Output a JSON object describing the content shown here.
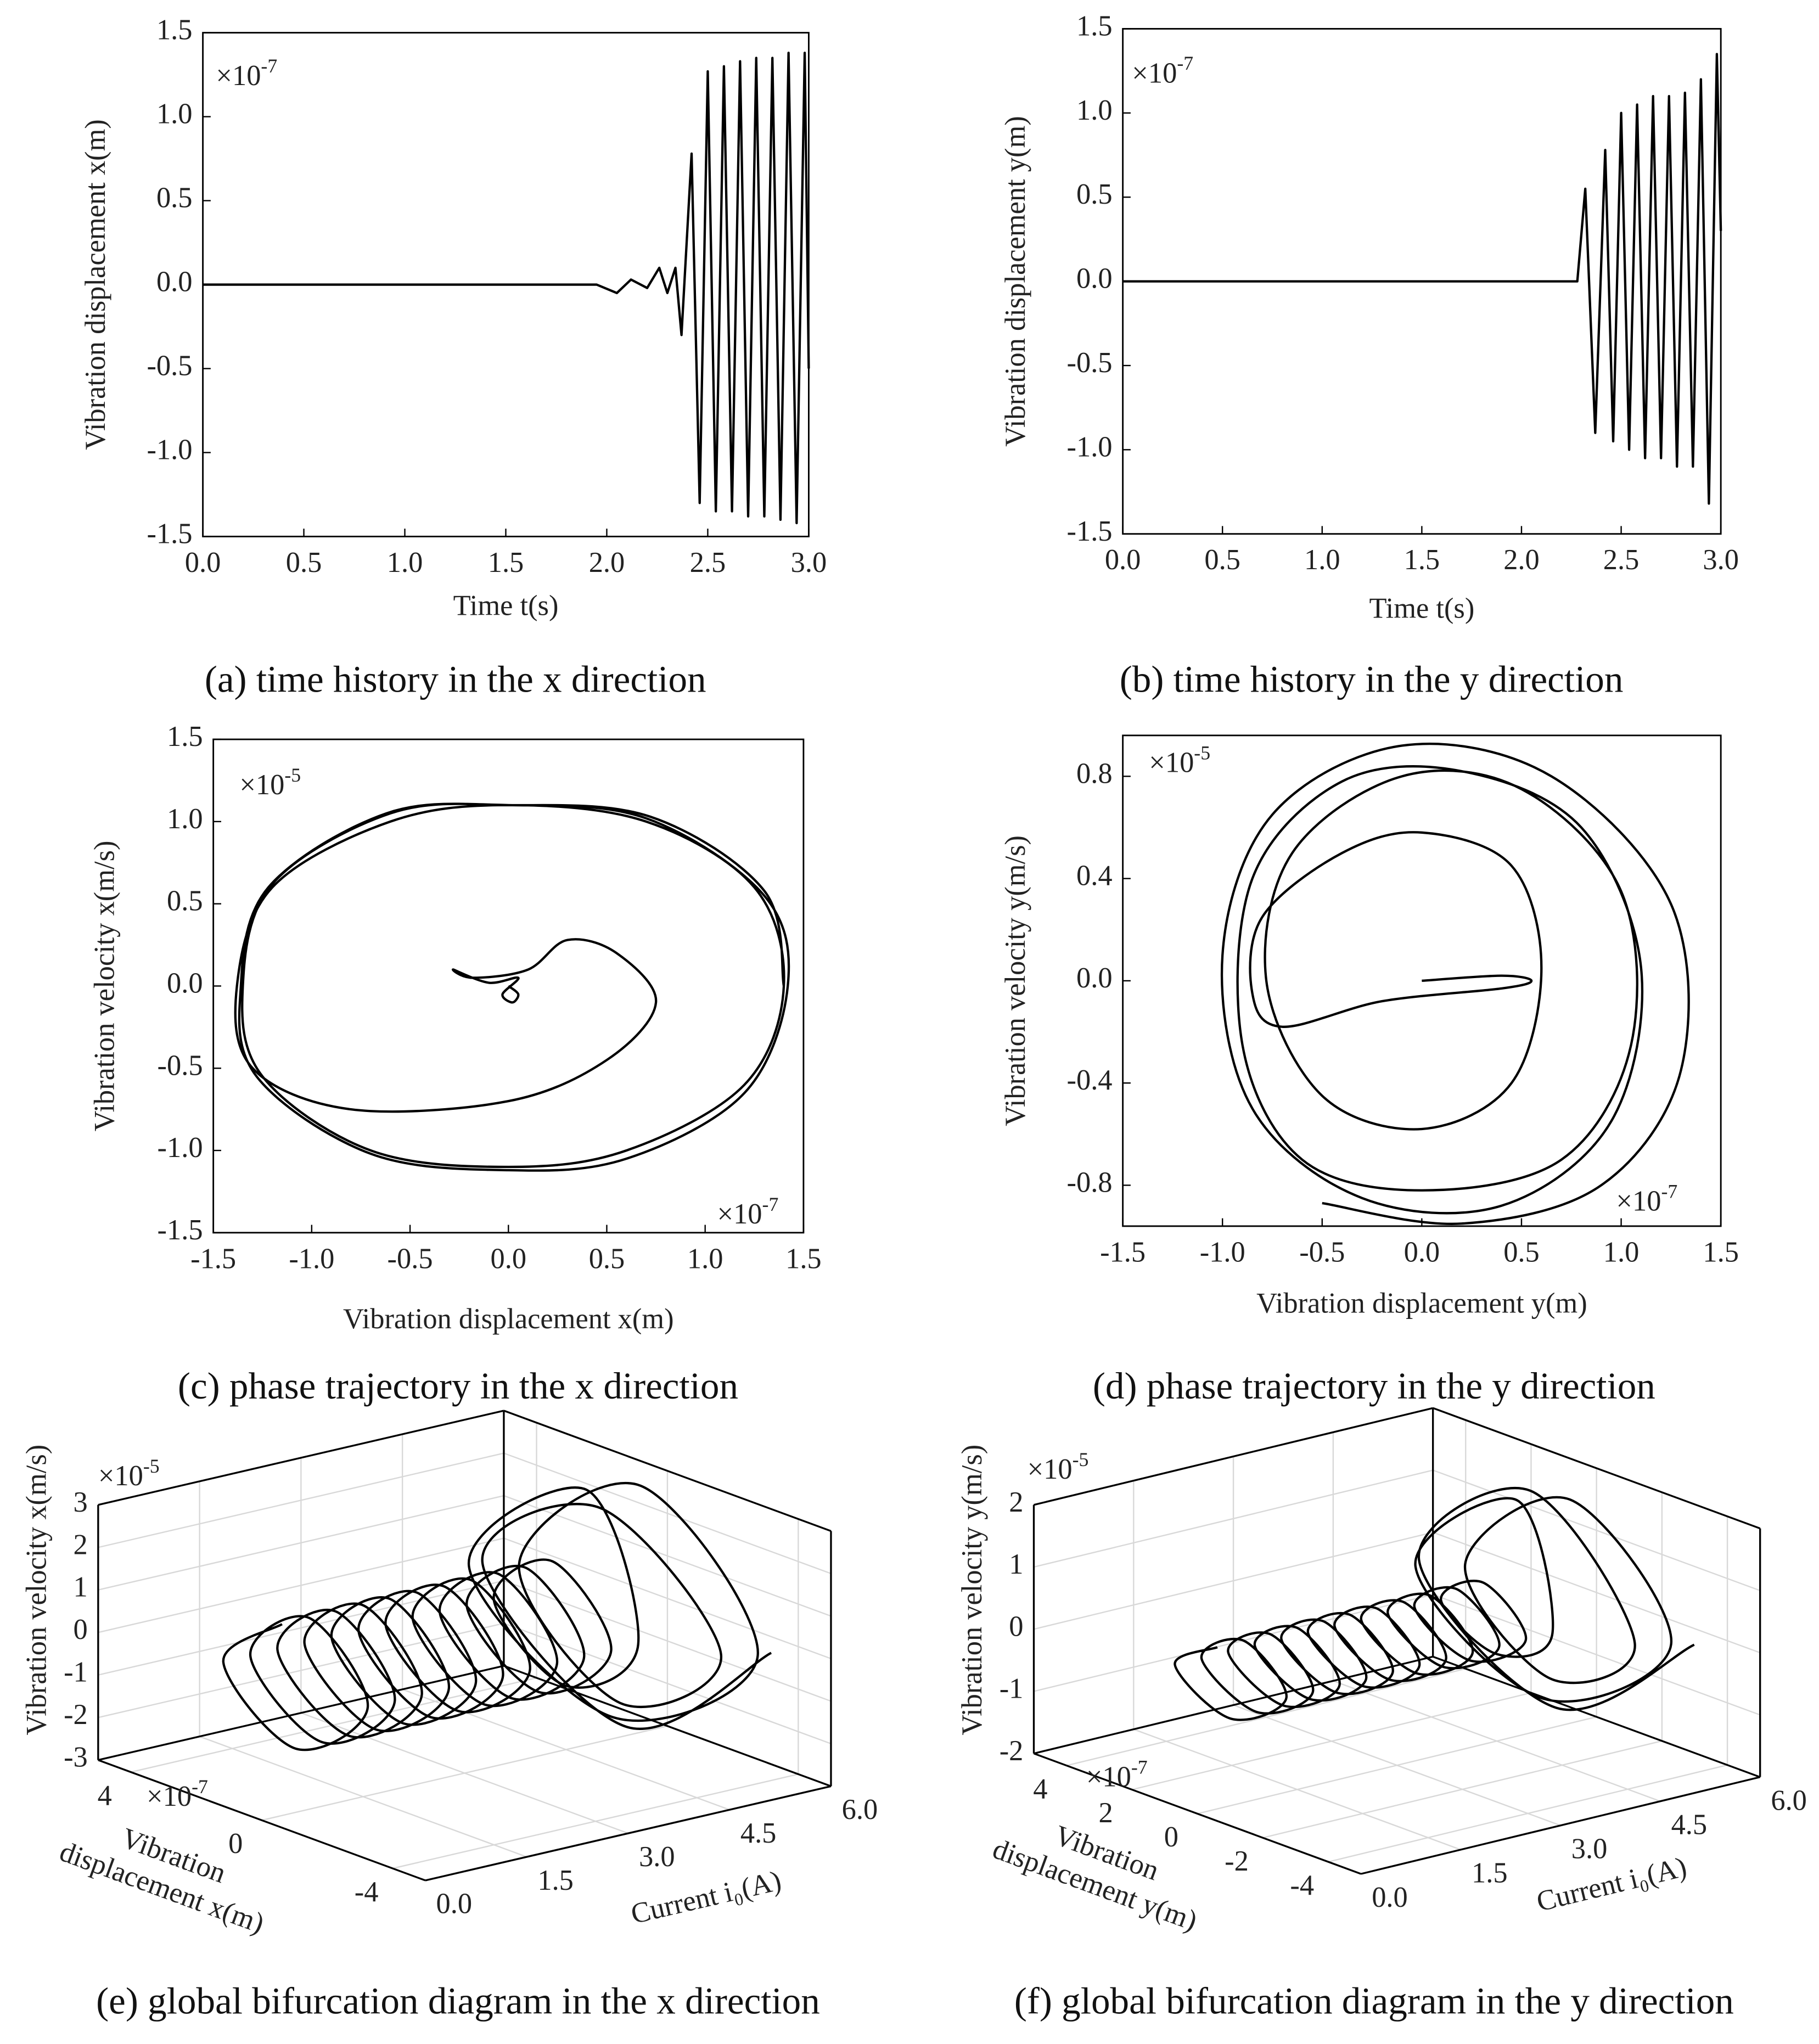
{
  "chart_data": [
    {
      "type": "line",
      "caption": "(a) time history in the x direction",
      "xlabel": "Time t(s)",
      "ylabel": "Vibration displacement x(m)",
      "y_multiplier": {
        "base": "×10",
        "exponent": "-7"
      },
      "color": "#000000",
      "xlim": [
        0,
        3
      ],
      "ylim": [
        -1.5,
        1.5
      ],
      "xticks": [
        {
          "value": 0,
          "label": "0.0"
        },
        0.5,
        {
          "value": 1,
          "label": "1.0"
        },
        1.5,
        {
          "value": 2,
          "label": "2.0"
        },
        2.5,
        {
          "value": 3,
          "label": "3.0"
        }
      ],
      "yticks": [
        -1.5,
        {
          "value": -1,
          "label": "-1.0"
        },
        -0.5,
        {
          "value": 0,
          "label": "0.0"
        },
        0.5,
        {
          "value": 1,
          "label": "1.0"
        },
        1.5
      ],
      "x": [
        0,
        1.95,
        2.05,
        2.12,
        2.2,
        2.26,
        2.3,
        2.34,
        2.37,
        2.42,
        2.46,
        2.5,
        2.54,
        2.58,
        2.62,
        2.66,
        2.7,
        2.74,
        2.78,
        2.82,
        2.86,
        2.9,
        2.94,
        2.98,
        3.0
      ],
      "values": [
        0,
        0,
        -0.05,
        0.03,
        -0.02,
        0.1,
        -0.05,
        0.1,
        -0.3,
        0.78,
        -1.3,
        1.27,
        -1.35,
        1.3,
        -1.35,
        1.33,
        -1.38,
        1.35,
        -1.38,
        1.35,
        -1.4,
        1.38,
        -1.42,
        1.38,
        -0.5
      ]
    },
    {
      "type": "line",
      "caption": "(b) time history in the y direction",
      "xlabel": "Time t(s)",
      "ylabel": "Vibration displacement y(m)",
      "y_multiplier": {
        "base": "×10",
        "exponent": "-7"
      },
      "color": "#000000",
      "xlim": [
        0,
        3
      ],
      "ylim": [
        -1.5,
        1.5
      ],
      "xticks": [
        {
          "value": 0,
          "label": "0.0"
        },
        0.5,
        {
          "value": 1,
          "label": "1.0"
        },
        1.5,
        {
          "value": 2,
          "label": "2.0"
        },
        2.5,
        {
          "value": 3,
          "label": "3.0"
        }
      ],
      "yticks": [
        -1.5,
        {
          "value": -1,
          "label": "-1.0"
        },
        -0.5,
        {
          "value": 0,
          "label": "0.0"
        },
        0.5,
        {
          "value": 1,
          "label": "1.0"
        },
        1.5
      ],
      "x": [
        0,
        2.28,
        2.32,
        2.37,
        2.42,
        2.46,
        2.5,
        2.54,
        2.58,
        2.62,
        2.66,
        2.7,
        2.74,
        2.78,
        2.82,
        2.86,
        2.9,
        2.94,
        2.98,
        3.0
      ],
      "values": [
        0,
        0,
        0.55,
        -0.9,
        0.78,
        -0.95,
        1.0,
        -1.0,
        1.05,
        -1.05,
        1.1,
        -1.05,
        1.1,
        -1.1,
        1.12,
        -1.1,
        1.2,
        -1.32,
        1.35,
        0.3
      ]
    },
    {
      "type": "phase",
      "caption": "(c) phase trajectory in the x direction",
      "xlabel": "Vibration displacement x(m)",
      "ylabel": "Vibration velocity x(m/s)",
      "x_multiplier": {
        "base": "×10",
        "exponent": "-7"
      },
      "y_multiplier": {
        "base": "×10",
        "exponent": "-5"
      },
      "color": "#000000",
      "xlim": [
        -1.5,
        1.5
      ],
      "ylim": [
        -1.5,
        1.5
      ],
      "xticks": [
        -1.5,
        {
          "value": -1,
          "label": "-1.0"
        },
        -0.5,
        {
          "value": 0,
          "label": "0.0"
        },
        0.5,
        {
          "value": 1,
          "label": "1.0"
        },
        1.5
      ],
      "yticks": [
        -1.5,
        {
          "value": -1,
          "label": "-1.0"
        },
        -0.5,
        {
          "value": 0,
          "label": "0.0"
        },
        0.5,
        {
          "value": 1,
          "label": "1.0"
        },
        1.5
      ],
      "x": [
        0,
        0.05,
        0.02,
        -0.03,
        0.05,
        -0.1,
        -0.28,
        -0.18,
        0.1,
        0.3,
        0.55,
        0.75,
        0.5,
        0,
        -0.8,
        -1.3,
        -1.38,
        -1.2,
        -0.6,
        0,
        0.7,
        1.25,
        1.4,
        1.2,
        0.6,
        0,
        -0.7,
        -1.25,
        -1.35,
        -1.2,
        -0.6,
        0,
        0.7,
        1.3,
        1.42,
        1.2,
        0.6,
        0,
        -0.7,
        -1.28,
        -1.36,
        -1.22,
        -0.62,
        0,
        0.72,
        1.3,
        1.4
      ],
      "values": [
        0,
        -0.05,
        -0.1,
        -0.05,
        0.05,
        0.02,
        0.1,
        0.05,
        0.1,
        0.28,
        0.2,
        -0.1,
        -0.45,
        -0.7,
        -0.75,
        -0.5,
        0,
        0.6,
        1.0,
        1.1,
        1.0,
        0.6,
        0,
        -0.6,
        -1.0,
        -1.1,
        -1.0,
        -0.55,
        0,
        0.62,
        1.05,
        1.1,
        1.02,
        0.55,
        0,
        -0.65,
        -1.05,
        -1.12,
        -1.02,
        -0.55,
        0,
        0.6,
        1.05,
        1.1,
        1.03,
        0.58,
        0
      ]
    },
    {
      "type": "phase",
      "caption": "(d) phase trajectory in the y direction",
      "xlabel": "Vibration displacement y(m)",
      "ylabel": "Vibration velocity y(m/s)",
      "x_multiplier": {
        "base": "×10",
        "exponent": "-7"
      },
      "y_multiplier": {
        "base": "×10",
        "exponent": "-5"
      },
      "color": "#000000",
      "xlim": [
        -1.5,
        1.5
      ],
      "ylim": [
        -0.96,
        0.96
      ],
      "xticks": [
        -1.5,
        {
          "value": -1,
          "label": "-1.0"
        },
        -0.5,
        {
          "value": 0,
          "label": "0.0"
        },
        0.5,
        {
          "value": 1,
          "label": "1.0"
        },
        1.5
      ],
      "yticks": [
        -0.8,
        -0.4,
        {
          "value": 0,
          "label": "0.0"
        },
        0.4,
        0.8
      ],
      "x": [
        0,
        0.4,
        0.55,
        0.4,
        -0.2,
        -0.7,
        -0.85,
        -0.8,
        -0.4,
        0,
        0.45,
        0.6,
        0.45,
        0,
        -0.5,
        -0.78,
        -0.65,
        -0.1,
        0.5,
        1.0,
        1.05,
        0.7,
        0,
        -0.6,
        -0.9,
        -0.85,
        -0.4,
        0.2,
        0.8,
        1.1,
        0.95,
        0.4,
        -0.3,
        -0.85,
        -1.0,
        -0.75,
        -0.1,
        0.65,
        1.25,
        1.3,
        0.9,
        0.2,
        -0.5
      ],
      "values": [
        0,
        0.02,
        0,
        -0.03,
        -0.08,
        -0.18,
        -0.05,
        0.25,
        0.5,
        0.58,
        0.45,
        0.05,
        -0.4,
        -0.58,
        -0.45,
        0,
        0.5,
        0.8,
        0.75,
        0.35,
        -0.25,
        -0.7,
        -0.82,
        -0.7,
        -0.25,
        0.4,
        0.78,
        0.82,
        0.6,
        0.05,
        -0.55,
        -0.88,
        -0.85,
        -0.5,
        0.1,
        0.65,
        0.92,
        0.8,
        0.3,
        -0.35,
        -0.8,
        -0.95,
        -0.87
      ]
    },
    {
      "type": "line3d",
      "caption": "(e) global bifurcation diagram in the x direction",
      "xlabel": "Current i₀(A)",
      "ylabel": [
        "Vibration",
        "displacement x(m)"
      ],
      "zlabel": "Vibration velocity x(m/s)",
      "y_multiplier": {
        "base": "×10",
        "exponent": "-7"
      },
      "z_multiplier": {
        "base": "×10",
        "exponent": "-5"
      },
      "color": "#000000",
      "xlim": [
        0,
        6
      ],
      "ylim": [
        -5,
        5
      ],
      "zlim": [
        -3,
        3
      ],
      "xticks": [
        {
          "value": 0,
          "label": "0.0"
        },
        1.5,
        {
          "value": 3,
          "label": "3.0"
        },
        4.5,
        {
          "value": 6,
          "label": "6.0"
        }
      ],
      "yticks": [
        4,
        0,
        -4
      ],
      "zticks": [
        -3,
        -2,
        -1,
        0,
        1,
        2,
        3
      ],
      "x": [
        0.3,
        0.4,
        0.5,
        0.6,
        0.7,
        0.8,
        0.9,
        1.0,
        1.1,
        1.2,
        1.3,
        1.4,
        1.5,
        1.6,
        1.7,
        1.8,
        1.9,
        2.0,
        2.1,
        2.2,
        2.3,
        2.4,
        2.5,
        2.6,
        2.7,
        2.8,
        2.9,
        3.0,
        3.1,
        3.2,
        3.3,
        3.4,
        3.5,
        3.6,
        3.7,
        3.8,
        3.9,
        4.0,
        4.1,
        4.2,
        4.3,
        4.4,
        4.5,
        4.6,
        4.8,
        5.0,
        5.2,
        5.4,
        5.6,
        5.5,
        5.3,
        5.1,
        5.0,
        5.2,
        5.4,
        5.6
      ],
      "y": [
        0,
        2,
        0,
        -2,
        0,
        2,
        0,
        -2,
        0,
        2,
        0,
        -2,
        0,
        2,
        0,
        -2,
        0,
        2,
        0,
        -2,
        0,
        2,
        0,
        -2,
        0,
        2,
        0,
        -2,
        0,
        2,
        0,
        -2,
        0,
        2,
        0,
        -2,
        0,
        2,
        0,
        -2,
        0,
        2,
        0,
        -2,
        0,
        4,
        0,
        -4,
        0,
        3.5,
        0,
        -3.5,
        0,
        4,
        0,
        -4
      ],
      "z": [
        1.5,
        0,
        -1.5,
        0,
        1.5,
        0,
        -1.5,
        0,
        1.5,
        0,
        -1.5,
        0,
        1.5,
        0,
        -1.5,
        0,
        1.5,
        0,
        -1.5,
        0,
        1.5,
        0,
        -1.5,
        0,
        1.5,
        0,
        -1.5,
        0,
        1.5,
        0,
        -1.5,
        0,
        1.5,
        0,
        -1.5,
        0,
        1.5,
        0,
        -1.5,
        0,
        1.5,
        0,
        -1.5,
        0,
        3,
        0,
        -2.5,
        0,
        2.8,
        0,
        -2.2,
        0,
        2.5,
        0,
        -2.8,
        0
      ]
    },
    {
      "type": "line3d",
      "caption": "(f) global bifurcation diagram in the y direction",
      "xlabel": "Current i₀(A)",
      "ylabel": [
        "Vibration",
        "displacement y(m)"
      ],
      "zlabel": "Vibration velocity y(m/s)",
      "y_multiplier": {
        "base": "×10",
        "exponent": "-7"
      },
      "z_multiplier": {
        "base": "×10",
        "exponent": "-5"
      },
      "color": "#000000",
      "xlim": [
        0,
        6
      ],
      "ylim": [
        -5,
        5
      ],
      "zlim": [
        -2,
        2
      ],
      "xticks": [
        {
          "value": 0,
          "label": "0.0"
        },
        1.5,
        {
          "value": 3,
          "label": "3.0"
        },
        4.5,
        {
          "value": 6,
          "label": "6.0"
        }
      ],
      "yticks": [
        4,
        2,
        0,
        -2,
        -4
      ],
      "zticks": [
        -2,
        -1,
        0,
        1,
        2
      ],
      "x": [
        0.3,
        0.4,
        0.5,
        0.6,
        0.7,
        0.8,
        0.9,
        1.0,
        1.1,
        1.2,
        1.3,
        1.4,
        1.5,
        1.6,
        1.7,
        1.8,
        1.9,
        2.0,
        2.1,
        2.2,
        2.3,
        2.4,
        2.5,
        2.6,
        2.7,
        2.8,
        2.9,
        3.0,
        3.1,
        3.2,
        3.3,
        3.4,
        3.5,
        3.6,
        3.7,
        3.8,
        3.9,
        4.0,
        4.1,
        4.2,
        4.3,
        4.4,
        4.5,
        4.6,
        4.8,
        5.0,
        5.2,
        5.4,
        5.6,
        5.5,
        5.3,
        5.1,
        5.0,
        5.2,
        5.4,
        5.6
      ],
      "y": [
        0,
        1.5,
        0,
        -1.5,
        0,
        1.5,
        0,
        -1.5,
        0,
        1.5,
        0,
        -1.5,
        0,
        1.5,
        0,
        -1.5,
        0,
        1.5,
        0,
        -1.5,
        0,
        1.5,
        0,
        -1.5,
        0,
        1.5,
        0,
        -1.5,
        0,
        1.5,
        0,
        -1.5,
        0,
        1.5,
        0,
        -1.5,
        0,
        1.5,
        0,
        -1.5,
        0,
        1.5,
        0,
        -1.5,
        0,
        3.5,
        0,
        -3.5,
        0,
        3,
        0,
        -3,
        0,
        3.8,
        0,
        -3.8
      ],
      "z": [
        0.6,
        0,
        -0.6,
        0,
        0.6,
        0,
        -0.6,
        0,
        0.6,
        0,
        -0.6,
        0,
        0.6,
        0,
        -0.6,
        0,
        0.6,
        0,
        -0.6,
        0,
        0.6,
        0,
        -0.6,
        0,
        0.6,
        0,
        -0.6,
        0,
        0.6,
        0,
        -0.6,
        0,
        0.6,
        0,
        -0.6,
        0,
        0.6,
        0,
        -0.6,
        0,
        0.6,
        0,
        -0.6,
        0,
        1.8,
        0,
        -1.5,
        0,
        1.6,
        0,
        -1.2,
        0,
        1.9,
        0,
        -1.7,
        0
      ]
    }
  ]
}
